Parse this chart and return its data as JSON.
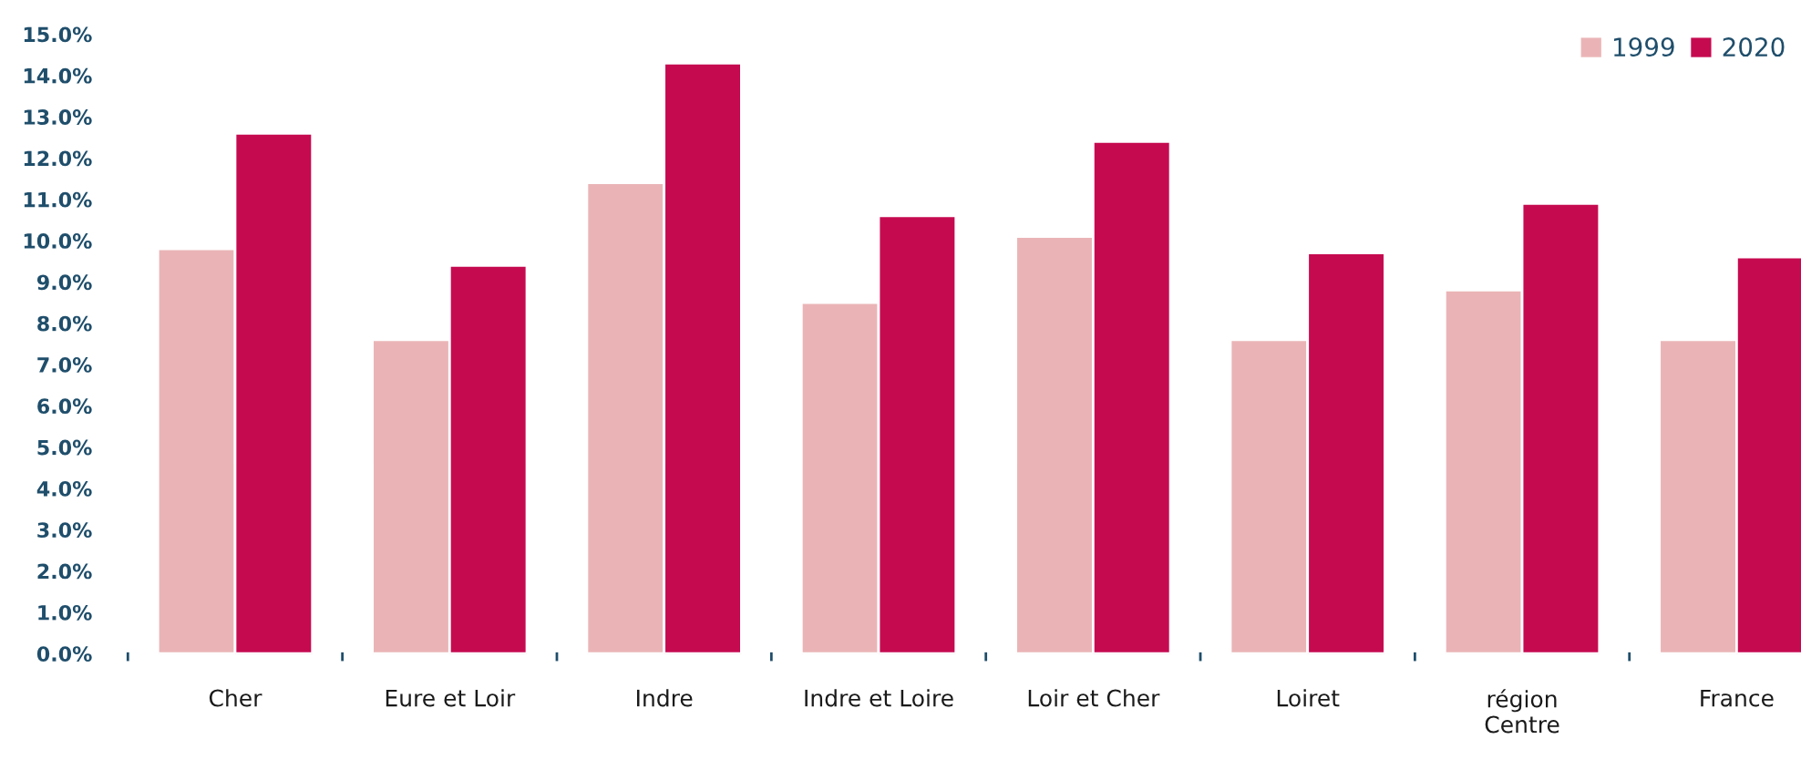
{
  "chart_data": {
    "type": "bar",
    "categories": [
      "Cher",
      "Eure et Loir",
      "Indre",
      "Indre et Loire",
      "Loir et Cher",
      "Loiret",
      "région\nCentre",
      "France"
    ],
    "series": [
      {
        "name": "1999",
        "color": "#eab4b6",
        "values": [
          9.8,
          7.6,
          11.4,
          8.5,
          10.1,
          7.6,
          8.8,
          7.6
        ]
      },
      {
        "name": "2020",
        "color": "#c60a50",
        "values": [
          12.6,
          9.4,
          14.3,
          10.6,
          12.4,
          9.7,
          10.9,
          9.6
        ]
      }
    ],
    "ylim": [
      0,
      15
    ],
    "yticks": [
      {
        "value": 0,
        "label": "0.0%"
      },
      {
        "value": 1,
        "label": "1.0%"
      },
      {
        "value": 2,
        "label": "2.0%"
      },
      {
        "value": 3,
        "label": "3.0%"
      },
      {
        "value": 4,
        "label": "4.0%"
      },
      {
        "value": 5,
        "label": "5.0%"
      },
      {
        "value": 6,
        "label": "6.0%"
      },
      {
        "value": 7,
        "label": "7.0%"
      },
      {
        "value": 8,
        "label": "8.0%"
      },
      {
        "value": 9,
        "label": "9.0%"
      },
      {
        "value": 10,
        "label": "10.0%"
      },
      {
        "value": 11,
        "label": "11.0%"
      },
      {
        "value": 12,
        "label": "12.0%"
      },
      {
        "value": 13,
        "label": "13.0%"
      },
      {
        "value": 14,
        "label": "14.0%"
      },
      {
        "value": 15,
        "label": "15.0%"
      }
    ],
    "grid": false,
    "legend": "top right"
  }
}
